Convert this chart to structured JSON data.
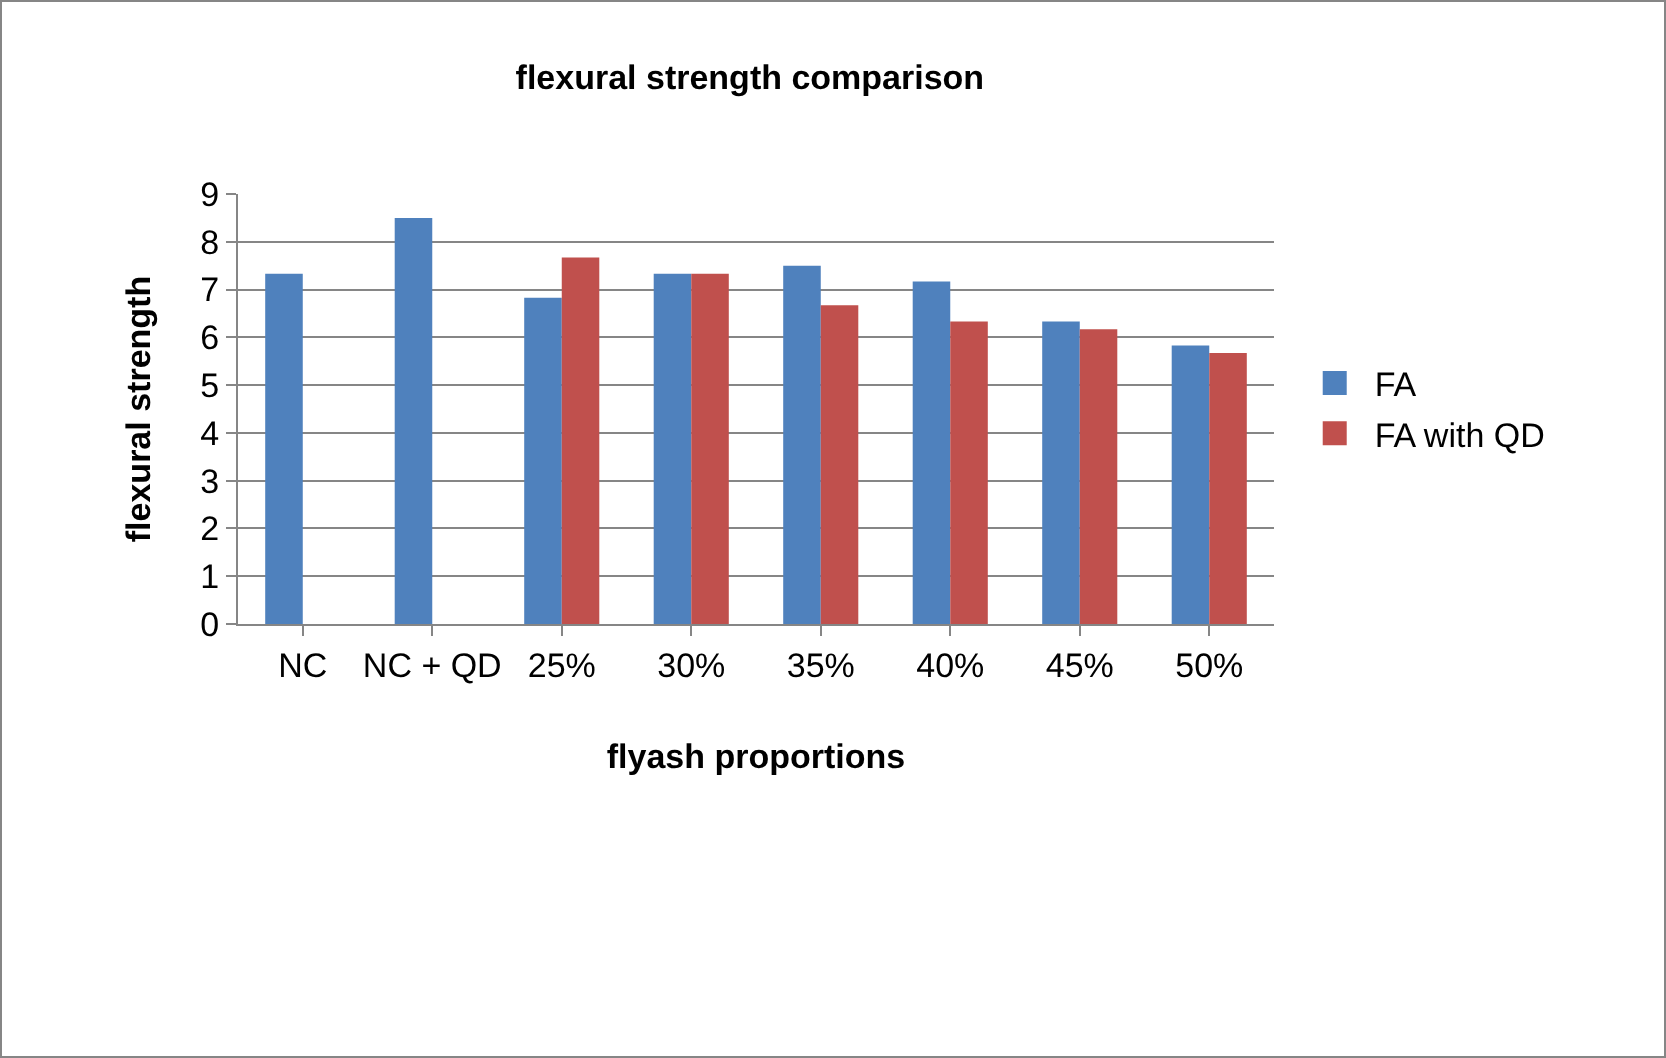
{
  "chart_data": {
    "type": "bar",
    "title": "flexural strength comparison",
    "xlabel": "flyash proportions",
    "ylabel": "flexural strength",
    "categories": [
      "NC",
      "NC + QD",
      "25%",
      "30%",
      "35%",
      "40%",
      "45%",
      "50%"
    ],
    "series": [
      {
        "name": "FA",
        "color": "#4f81bd",
        "values": [
          7.33,
          8.5,
          6.83,
          7.33,
          7.5,
          7.17,
          6.33,
          5.83
        ]
      },
      {
        "name": "FA with QD",
        "color": "#c0504d",
        "values": [
          null,
          null,
          7.67,
          7.33,
          6.67,
          6.33,
          6.17,
          5.67
        ]
      }
    ],
    "ylim": [
      0,
      9
    ],
    "yticks": [
      0,
      1,
      2,
      3,
      4,
      5,
      6,
      7,
      8,
      9
    ],
    "grid": "y",
    "legend": "right"
  }
}
